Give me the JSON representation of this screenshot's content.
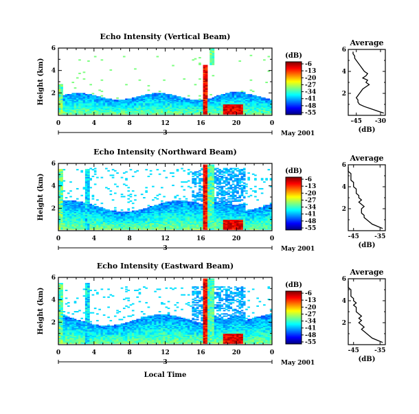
{
  "chart_data": [
    {
      "type": "heatmap",
      "title": "Echo Intensity (Vertical Beam)",
      "ylabel": "Height (km)",
      "xlim": [
        0,
        24
      ],
      "ylim": [
        0,
        6
      ],
      "x_tick_labels": [
        "0",
        "4",
        "8",
        "12",
        "16",
        "20",
        "0"
      ],
      "y_tick_labels": [
        "2",
        "4",
        "6"
      ],
      "day_label": "3",
      "date_label": "May 2001",
      "colorbar": {
        "unit": "(dB)",
        "labels": [
          "-6",
          "-13",
          "-20",
          "-27",
          "-34",
          "-41",
          "-48",
          "-55"
        ]
      },
      "profile": {
        "title": "Average",
        "xlabel": "(dB)",
        "x_tick_labels": [
          "-45",
          "-30"
        ],
        "y_tick_labels": [
          "2",
          "4",
          "6"
        ],
        "xlim": [
          -50,
          -27
        ],
        "ylim": [
          0,
          6
        ],
        "heights": [
          0.2,
          0.4,
          0.6,
          0.8,
          1.0,
          1.2,
          1.4,
          1.6,
          1.8,
          2.0,
          2.2,
          2.4,
          2.6,
          2.8,
          3.0,
          3.2,
          3.4,
          3.6,
          3.8,
          4.0,
          4.2,
          4.4,
          4.6,
          4.8,
          5.0,
          5.2,
          5.4,
          5.6,
          5.8
        ],
        "values": [
          -28,
          -32,
          -36,
          -40,
          -43,
          -44,
          -44,
          -45,
          -44,
          -43,
          -42,
          -41,
          -39,
          -37,
          -39,
          -38,
          -41,
          -39,
          -38,
          -40,
          -41,
          -42,
          -43,
          -44,
          -45,
          -46,
          -46,
          -47,
          -47
        ]
      }
    },
    {
      "type": "heatmap",
      "title": "Echo Intensity (Northward Beam)",
      "ylabel": "Height (km)",
      "xlim": [
        0,
        24
      ],
      "ylim": [
        0,
        6
      ],
      "x_tick_labels": [
        "0",
        "4",
        "8",
        "12",
        "16",
        "20",
        "0"
      ],
      "y_tick_labels": [
        "2",
        "4",
        "6"
      ],
      "day_label": "3",
      "date_label": "May 2001",
      "colorbar": {
        "unit": "(dB)",
        "labels": [
          "-6",
          "-13",
          "-20",
          "-27",
          "-34",
          "-41",
          "-48",
          "-55"
        ]
      },
      "profile": {
        "title": "Average",
        "xlabel": "(dB)",
        "x_tick_labels": [
          "-45",
          "-35"
        ],
        "y_tick_labels": [
          "2",
          "4",
          "6"
        ],
        "xlim": [
          -47,
          -33
        ],
        "ylim": [
          0,
          6
        ],
        "heights": [
          0.2,
          0.4,
          0.6,
          0.8,
          1.0,
          1.2,
          1.4,
          1.6,
          1.8,
          2.0,
          2.2,
          2.4,
          2.6,
          2.8,
          3.0,
          3.2,
          3.4,
          3.6,
          3.8,
          4.0,
          4.2,
          4.4,
          4.6,
          4.8,
          5.0,
          5.2,
          5.4,
          5.6,
          5.8
        ],
        "values": [
          -34,
          -36,
          -38,
          -39,
          -40,
          -41,
          -41,
          -42,
          -42,
          -42,
          -41,
          -42,
          -43,
          -42,
          -43,
          -43,
          -44,
          -44,
          -44,
          -45,
          -45,
          -45,
          -46,
          -46,
          -46,
          -46,
          -47,
          -47,
          -47
        ]
      }
    },
    {
      "type": "heatmap",
      "title": "Echo Intensity (Eastward Beam)",
      "ylabel": "Height (km)",
      "xlabel": "Local Time",
      "xlim": [
        0,
        24
      ],
      "ylim": [
        0,
        6
      ],
      "x_tick_labels": [
        "0",
        "4",
        "8",
        "12",
        "16",
        "20",
        "0"
      ],
      "y_tick_labels": [
        "2",
        "4",
        "6"
      ],
      "day_label": "3",
      "date_label": "May 2001",
      "colorbar": {
        "unit": "(dB)",
        "labels": [
          "-6",
          "-13",
          "-20",
          "-27",
          "-34",
          "-41",
          "-48",
          "-55"
        ]
      },
      "profile": {
        "title": "Average",
        "xlabel": "(dB)",
        "x_tick_labels": [
          "-45",
          "-35"
        ],
        "y_tick_labels": [
          "2",
          "4",
          "6"
        ],
        "xlim": [
          -47,
          -33
        ],
        "ylim": [
          0,
          6
        ],
        "heights": [
          0.2,
          0.4,
          0.6,
          0.8,
          1.0,
          1.2,
          1.4,
          1.6,
          1.8,
          2.0,
          2.2,
          2.4,
          2.6,
          2.8,
          3.0,
          3.2,
          3.4,
          3.6,
          3.8,
          4.0,
          4.2,
          4.4,
          4.6,
          4.8,
          5.0,
          5.2,
          5.4,
          5.6,
          5.8
        ],
        "values": [
          -34,
          -36,
          -38,
          -39,
          -40,
          -41,
          -42,
          -41,
          -42,
          -43,
          -42,
          -43,
          -42,
          -43,
          -44,
          -44,
          -44,
          -45,
          -44,
          -45,
          -45,
          -46,
          -46,
          -46,
          -46,
          -47,
          -47,
          -47,
          -47
        ]
      }
    }
  ]
}
